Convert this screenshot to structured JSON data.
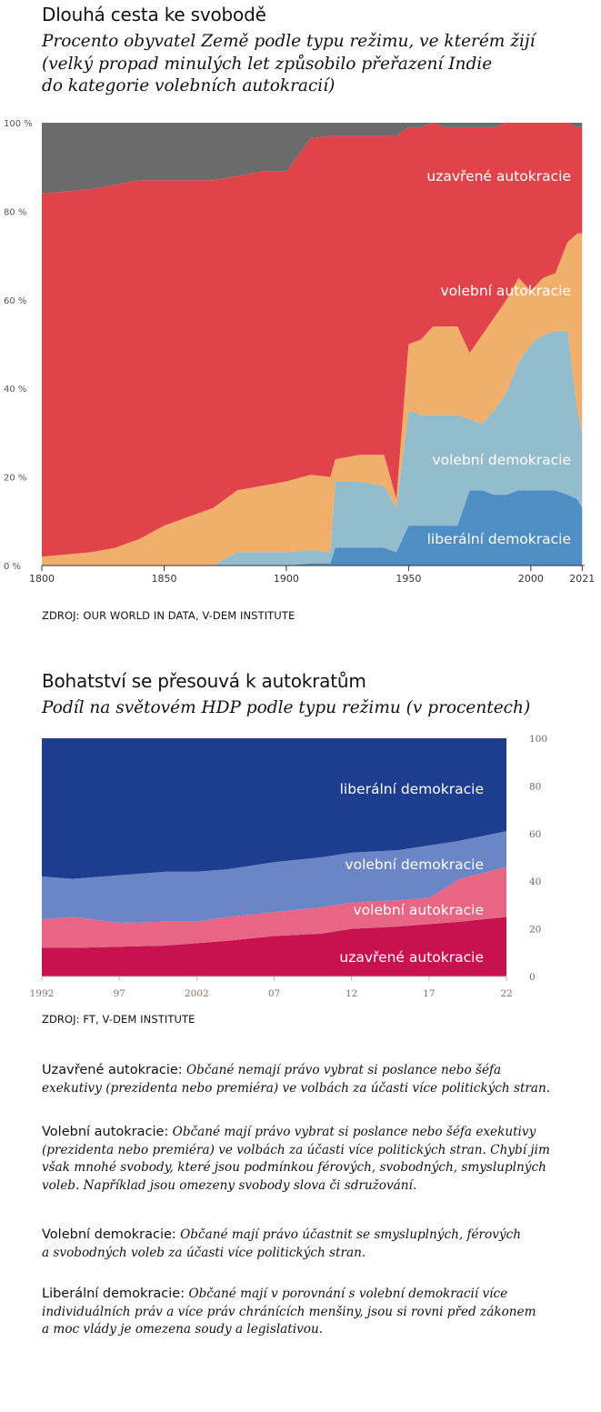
{
  "chart1": {
    "title": "Dlouhá cesta ke svobodě",
    "subtitle": [
      "Procento obyvatel Země podle typu režimu, ve kterém žijí",
      "(velký propad minulých let způsobilo přeřazení Indie",
      "do kategorie volebních autokracií)"
    ],
    "source": "ZDROJ: OUR WORLD IN DATA, V-DEM INSTITUTE",
    "y_ticks": [
      "100 %",
      "80 %",
      "60 %",
      "40 %",
      "20 %",
      "0 %"
    ],
    "x_ticks": [
      "1800",
      "1850",
      "1900",
      "1950",
      "2000",
      "2021"
    ],
    "labels": [
      "uzavřené autokracie",
      "volební autokracie",
      "volební demokracie",
      "liberální demokracie"
    ],
    "colors": {
      "no_data": "#6b6b6b",
      "closed_autocracy": "#e0434a",
      "electoral_autocracy": "#f0b06c",
      "electoral_democracy": "#93bccd",
      "liberal_democracy": "#4f8ec4"
    }
  },
  "chart2": {
    "title": "Bohatství se přesouvá k autokratům",
    "subtitle": "Podíl na světovém HDP podle typu režimu (v procentech)",
    "source": "ZDROJ: FT, V-DEM INSTITUTE",
    "y_ticks": [
      "100",
      "80",
      "60",
      "40",
      "20",
      "0"
    ],
    "x_ticks": [
      "1992",
      "97",
      "2002",
      "07",
      "12",
      "17",
      "22"
    ],
    "labels": [
      "liberální demokracie",
      "volební demokracie",
      "volební autokracie",
      "uzavřené autokracie"
    ],
    "colors": {
      "liberal_democracy": "#1f3d8f",
      "electoral_democracy": "#6a86c6",
      "electoral_autocracy": "#e96584",
      "closed_autocracy": "#c7124f"
    }
  },
  "chart_data": [
    {
      "type": "area",
      "title": "Dlouhá cesta ke svobodě",
      "stacked": true,
      "ylim": [
        0,
        100
      ],
      "xlim": [
        1800,
        2022
      ],
      "grid": false,
      "x": [
        1800,
        1810,
        1820,
        1830,
        1840,
        1850,
        1860,
        1870,
        1880,
        1890,
        1900,
        1910,
        1918,
        1920,
        1930,
        1940,
        1945,
        1950,
        1955,
        1960,
        1965,
        1970,
        1975,
        1980,
        1985,
        1990,
        1995,
        2000,
        2005,
        2010,
        2015,
        2019,
        2021
      ],
      "series": [
        {
          "name": "liberální demokracie",
          "values": [
            0,
            0,
            0,
            0,
            0,
            0,
            0,
            0,
            0,
            0,
            0,
            0.5,
            0.5,
            4,
            4,
            4,
            3,
            9,
            9,
            9,
            9,
            9,
            17,
            17,
            16,
            16,
            17,
            17,
            17,
            17,
            16,
            15,
            13
          ]
        },
        {
          "name": "volební demokracie",
          "values": [
            0,
            0,
            0,
            0,
            0,
            0,
            0,
            0,
            3,
            3,
            3,
            3,
            2.5,
            15,
            15,
            14,
            10,
            26,
            25,
            25,
            25,
            25,
            16,
            15,
            19,
            23,
            29,
            33,
            35,
            36,
            37,
            20,
            17
          ]
        },
        {
          "name": "volební autokracie",
          "values": [
            2,
            2.5,
            3,
            4,
            6,
            9,
            11,
            13,
            14,
            15,
            16,
            17,
            17,
            5,
            6,
            7,
            2,
            15,
            17,
            20,
            20,
            20,
            15,
            20,
            21,
            21,
            19,
            12,
            13,
            13,
            20,
            40,
            45
          ]
        },
        {
          "name": "uzavřené autokracie",
          "values": [
            82,
            82,
            82,
            82,
            81,
            78,
            76,
            74,
            71,
            71,
            70,
            76,
            77,
            73,
            72,
            72,
            82,
            49,
            48,
            46,
            45,
            45,
            51,
            47,
            43,
            40,
            35,
            38,
            35,
            34,
            27,
            24,
            24
          ]
        },
        {
          "name": "",
          "values": [
            16,
            15.5,
            15,
            14,
            13,
            13,
            13,
            13,
            12,
            11,
            11,
            3.5,
            3,
            3,
            3,
            3,
            3,
            1,
            1,
            0,
            1,
            1,
            1,
            1,
            1,
            0,
            0,
            0,
            0,
            0,
            0,
            1,
            1
          ]
        }
      ]
    },
    {
      "type": "area",
      "title": "Bohatství se přesouvá k autokratům",
      "stacked": true,
      "ylim": [
        0,
        100
      ],
      "xlim": [
        1992,
        2022
      ],
      "grid": false,
      "x": [
        1992,
        1994,
        1997,
        2000,
        2002,
        2004,
        2007,
        2010,
        2012,
        2015,
        2017,
        2019,
        2022
      ],
      "series": [
        {
          "name": "uzavřené autokracie",
          "values": [
            12,
            12,
            12.5,
            13,
            14,
            15,
            17,
            18,
            20,
            21,
            22,
            23,
            25
          ]
        },
        {
          "name": "volební autokracie",
          "values": [
            12,
            13,
            10,
            10,
            9,
            10,
            10,
            11,
            11,
            11,
            11,
            18,
            21
          ]
        },
        {
          "name": "volební demokracie",
          "values": [
            18,
            16,
            20,
            21,
            21,
            20,
            21,
            21,
            21,
            21,
            22,
            16,
            15
          ]
        },
        {
          "name": "liberální demokracie",
          "values": [
            58,
            59,
            57.5,
            56,
            56,
            55,
            52,
            50,
            48,
            47,
            45,
            43,
            39
          ]
        }
      ]
    }
  ],
  "definitions": [
    {
      "term": "Uzavřené autokracie:",
      "lines": [
        "Občané nemají právo vybrat si poslance nebo šéfa",
        "exekutivy (prezidenta nebo premiéra) ve volbách za účasti více politických stran."
      ]
    },
    {
      "term": "Volební autokracie:",
      "lines": [
        "Občané mají právo vybrat si poslance nebo šéfa exekutivy",
        "(prezidenta nebo premiéra) ve volbách za účasti více politických stran. Chybí jim",
        "však mnohé svobody, které jsou podmínkou férových, svobodných, smysluplných",
        "voleb. Například jsou omezeny svobody slova či sdružování."
      ]
    },
    {
      "term": "Volební demokracie:",
      "lines": [
        "Občané mají právo účastnit se smysluplných, férových",
        "a svobodných voleb za účasti více politických stran."
      ]
    },
    {
      "term": "Liberální demokracie:",
      "lines": [
        "Občané mají v porovnání s volební demokracií více",
        "individuálních práv a více práv chránících menšiny, jsou si rovni před zákonem",
        "a moc vlády je omezena soudy a legislativou."
      ]
    }
  ]
}
